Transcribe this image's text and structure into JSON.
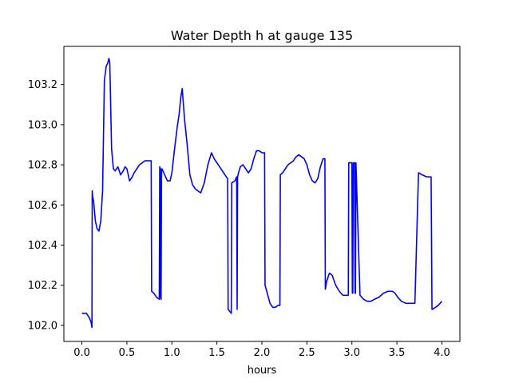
{
  "chart_data": {
    "type": "line",
    "title": "Water Depth h at gauge 135",
    "xlabel": "hours",
    "ylabel": "",
    "xlim": [
      -0.2,
      4.2
    ],
    "ylim": [
      101.92,
      103.39
    ],
    "xticks": [
      0.0,
      0.5,
      1.0,
      1.5,
      2.0,
      2.5,
      3.0,
      3.5,
      4.0
    ],
    "xtick_labels": [
      "0.0",
      "0.5",
      "1.0",
      "1.5",
      "2.0",
      "2.5",
      "3.0",
      "3.5",
      "4.0"
    ],
    "yticks": [
      102.0,
      102.2,
      102.4,
      102.6,
      102.8,
      103.0,
      103.2
    ],
    "ytick_labels": [
      "102.0",
      "102.2",
      "102.4",
      "102.6",
      "102.8",
      "103.0",
      "103.2"
    ],
    "grid": false,
    "series": [
      {
        "color": "#0000ff",
        "x": [
          0.0,
          0.05,
          0.08,
          0.1,
          0.112,
          0.115,
          0.12,
          0.13,
          0.15,
          0.17,
          0.19,
          0.21,
          0.23,
          0.25,
          0.27,
          0.29,
          0.3,
          0.31,
          0.33,
          0.35,
          0.37,
          0.4,
          0.43,
          0.46,
          0.48,
          0.5,
          0.53,
          0.56,
          0.58,
          0.61,
          0.64,
          0.67,
          0.7,
          0.73,
          0.77,
          0.775,
          0.8,
          0.83,
          0.86,
          0.865,
          0.87,
          0.875,
          0.88,
          0.885,
          0.89,
          0.92,
          0.95,
          0.98,
          1.0,
          1.03,
          1.06,
          1.08,
          1.1,
          1.115,
          1.125,
          1.14,
          1.17,
          1.2,
          1.23,
          1.26,
          1.29,
          1.32,
          1.36,
          1.4,
          1.44,
          1.47,
          1.5,
          1.53,
          1.56,
          1.59,
          1.62,
          1.625,
          1.66,
          1.665,
          1.7,
          1.72,
          1.725,
          1.73,
          1.74,
          1.76,
          1.79,
          1.82,
          1.85,
          1.88,
          1.91,
          1.94,
          1.97,
          2.0,
          2.03,
          2.035,
          2.06,
          2.09,
          2.12,
          2.15,
          2.18,
          2.2,
          2.205,
          2.23,
          2.26,
          2.29,
          2.32,
          2.35,
          2.38,
          2.41,
          2.44,
          2.47,
          2.5,
          2.53,
          2.56,
          2.59,
          2.62,
          2.65,
          2.68,
          2.7,
          2.705,
          2.72,
          2.75,
          2.78,
          2.82,
          2.86,
          2.9,
          2.94,
          2.96,
          2.965,
          3.0,
          3.005,
          3.01,
          3.015,
          3.03,
          3.035,
          3.04,
          3.045,
          3.09,
          3.13,
          3.17,
          3.21,
          3.25,
          3.3,
          3.35,
          3.4,
          3.45,
          3.48,
          3.51,
          3.55,
          3.6,
          3.65,
          3.7,
          3.74,
          3.745,
          3.78,
          3.83,
          3.88,
          3.89,
          3.895,
          3.93,
          3.96,
          4.0
        ],
        "y": [
          102.06,
          102.06,
          102.04,
          102.02,
          101.99,
          102.67,
          102.64,
          102.62,
          102.52,
          102.48,
          102.47,
          102.52,
          102.67,
          103.22,
          103.29,
          103.31,
          103.33,
          103.31,
          102.88,
          102.78,
          102.77,
          102.79,
          102.75,
          102.77,
          102.79,
          102.78,
          102.72,
          102.74,
          102.76,
          102.78,
          102.8,
          102.81,
          102.82,
          102.82,
          102.82,
          102.17,
          102.16,
          102.14,
          102.13,
          102.79,
          102.78,
          102.14,
          102.13,
          102.78,
          102.78,
          102.75,
          102.72,
          102.72,
          102.76,
          102.88,
          102.99,
          103.05,
          103.14,
          103.18,
          103.12,
          103.03,
          102.9,
          102.75,
          102.7,
          102.68,
          102.67,
          102.66,
          102.71,
          102.8,
          102.86,
          102.83,
          102.81,
          102.79,
          102.77,
          102.75,
          102.73,
          102.08,
          102.06,
          102.71,
          102.72,
          102.74,
          102.08,
          102.74,
          102.76,
          102.79,
          102.8,
          102.78,
          102.76,
          102.78,
          102.83,
          102.87,
          102.87,
          102.86,
          102.86,
          102.2,
          102.16,
          102.11,
          102.09,
          102.09,
          102.1,
          102.1,
          102.75,
          102.76,
          102.78,
          102.8,
          102.81,
          102.82,
          102.84,
          102.85,
          102.84,
          102.83,
          102.8,
          102.75,
          102.72,
          102.71,
          102.73,
          102.79,
          102.83,
          102.83,
          102.18,
          102.22,
          102.26,
          102.25,
          102.2,
          102.17,
          102.15,
          102.15,
          102.15,
          102.81,
          102.81,
          102.16,
          102.16,
          102.81,
          102.81,
          102.16,
          102.16,
          102.81,
          102.15,
          102.13,
          102.12,
          102.12,
          102.13,
          102.14,
          102.16,
          102.17,
          102.17,
          102.16,
          102.14,
          102.12,
          102.11,
          102.11,
          102.11,
          102.76,
          102.76,
          102.75,
          102.74,
          102.74,
          102.08,
          102.08,
          102.09,
          102.1,
          102.12
        ]
      }
    ]
  }
}
